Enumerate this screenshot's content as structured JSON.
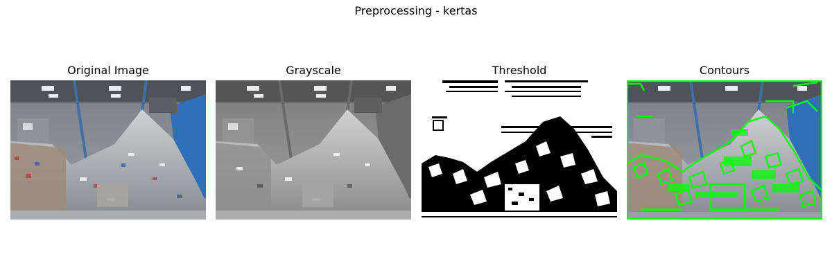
{
  "figure": {
    "title": "Preprocessing - kertas"
  },
  "panels": [
    {
      "title": "Original Image",
      "type": "original"
    },
    {
      "title": "Grayscale",
      "type": "grayscale"
    },
    {
      "title": "Threshold",
      "type": "threshold"
    },
    {
      "title": "Contours",
      "type": "contours",
      "contour_color": "#00ff00"
    }
  ]
}
